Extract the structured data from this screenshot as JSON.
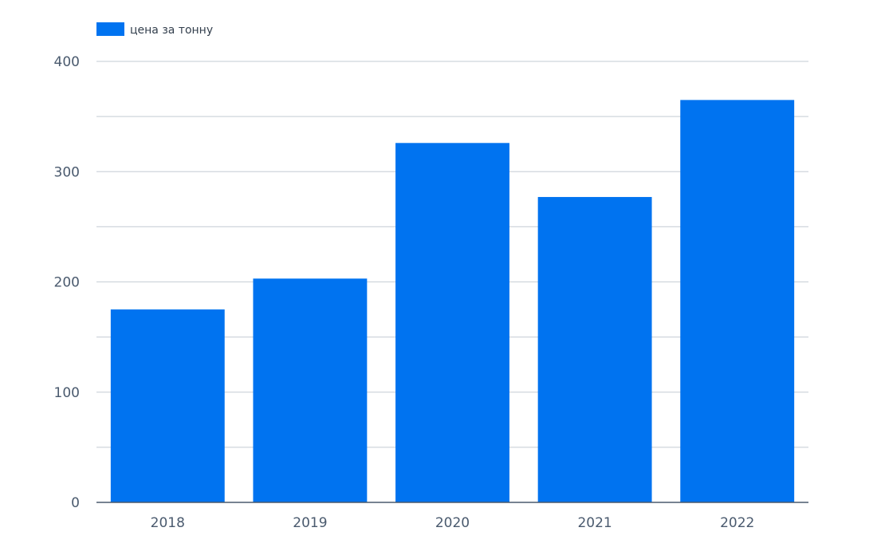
{
  "chart_data": {
    "type": "bar",
    "title": "",
    "xlabel": "",
    "ylabel": "",
    "categories": [
      "2018",
      "2019",
      "2020",
      "2021",
      "2022"
    ],
    "series": [
      {
        "name": "цена за тонну",
        "values": [
          175,
          203,
          326,
          277,
          365
        ],
        "color": "#0073f0"
      }
    ],
    "ylim": [
      0,
      400
    ],
    "yticks": [
      0,
      100,
      200,
      300,
      400
    ],
    "minor_gridlines": [
      50,
      150,
      250,
      350
    ],
    "grid": true,
    "legend_position": "top-left",
    "colors": {
      "bar": "#0073f0",
      "grid": "#cfd5dc",
      "axis": "#4a5a6e",
      "tick_label": "#4a5a6e"
    }
  }
}
